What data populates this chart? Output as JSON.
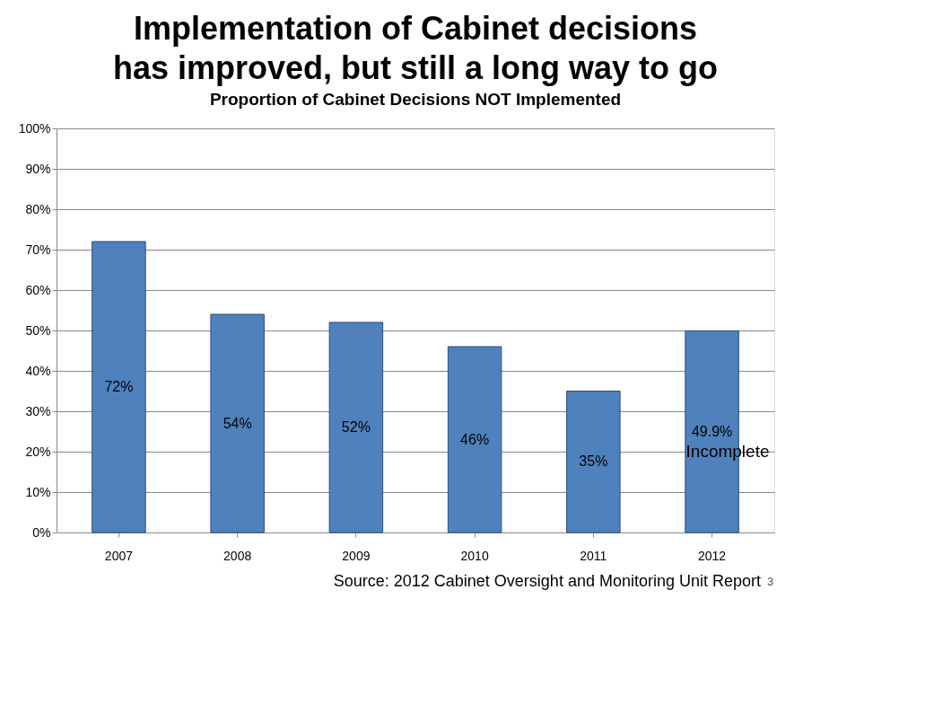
{
  "chart_data": {
    "type": "bar",
    "title": "Implementation of Cabinet decisions has improved, but still a long way to go",
    "subtitle": "Proportion of Cabinet Decisions NOT Implemented",
    "categories": [
      "2007",
      "2008",
      "2009",
      "2010",
      "2011",
      "2012"
    ],
    "values": [
      72,
      54,
      52,
      46,
      35,
      49.9
    ],
    "value_labels": [
      "72%",
      "54%",
      "52%",
      "46%",
      "35%",
      "49.9%"
    ],
    "color": "#4f81bd",
    "ylim": [
      0,
      100
    ],
    "yticks": [
      {
        "value": 0,
        "label": "0%"
      },
      {
        "value": 10,
        "label": "10%"
      },
      {
        "value": 20,
        "label": "20%"
      },
      {
        "value": 30,
        "label": "30%"
      },
      {
        "value": 40,
        "label": "40%"
      },
      {
        "value": 50,
        "label": "50%"
      },
      {
        "value": 60,
        "label": "60%"
      },
      {
        "value": 70,
        "label": "70%"
      },
      {
        "value": 80,
        "label": "80%"
      },
      {
        "value": 90,
        "label": "90%"
      },
      {
        "value": 100,
        "label": "100%"
      }
    ],
    "grid": "y",
    "annotations": [
      "Incomplete",
      "Source: 2012 Cabinet Oversight and Monitoring Unit Report",
      "3"
    ]
  }
}
